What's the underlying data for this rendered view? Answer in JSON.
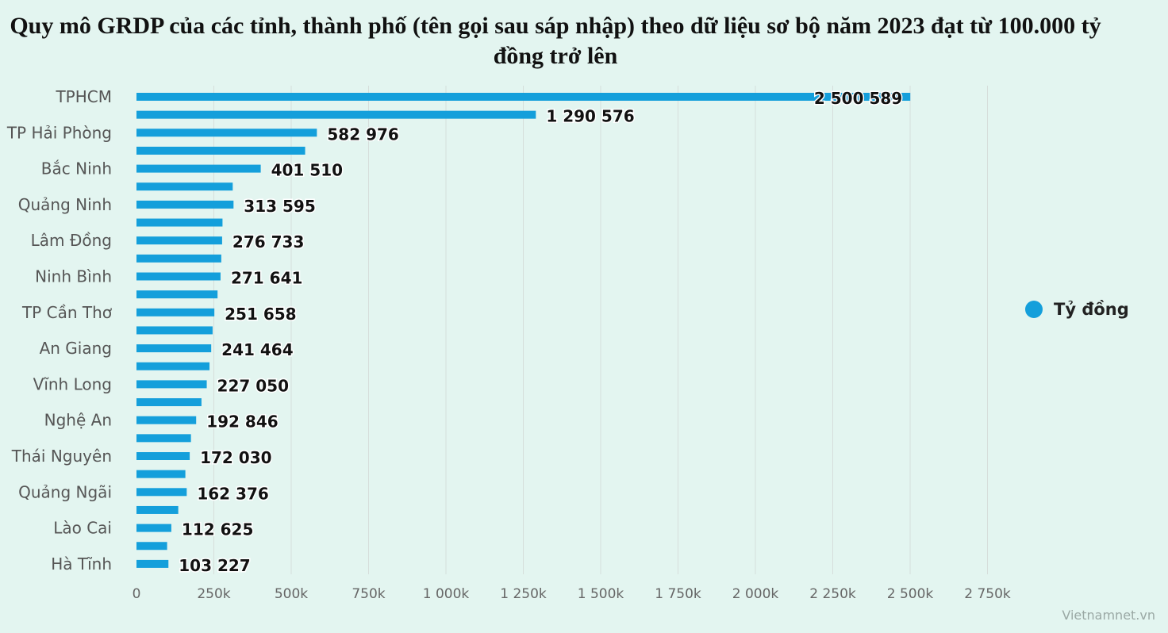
{
  "title": "Quy mô GRDP của các tỉnh, thành phố (tên gọi sau sáp nhập) theo dữ liệu sơ bộ năm 2023 đạt từ 100.000 tỷ đồng trở lên",
  "source": "Vietnamnet.vn",
  "colors": {
    "bar": "#149fdb",
    "background": "#e3f5f0",
    "grid": "#d6dedb"
  },
  "chart_data": {
    "type": "bar",
    "orientation": "horizontal",
    "unit": "Tỷ đồng",
    "legend": {
      "position": "right",
      "entries": [
        "Tỷ đồng"
      ]
    },
    "xlim": [
      0,
      2750000
    ],
    "xticks": [
      0,
      250000,
      500000,
      750000,
      1000000,
      1250000,
      1500000,
      1750000,
      2000000,
      2250000,
      2500000,
      2750000
    ],
    "xtick_labels": [
      "0",
      "250k",
      "500k",
      "750k",
      "1 000k",
      "1 250k",
      "1 500k",
      "1 750k",
      "2 000k",
      "2 250k",
      "2 500k",
      "2 750k"
    ],
    "grid": true,
    "series": [
      {
        "name": "Tỷ đồng",
        "values": [
          2500589,
          1290576,
          582976,
          545000,
          401510,
          311000,
          313595,
          278000,
          276733,
          274000,
          271641,
          262000,
          251658,
          246000,
          241464,
          236000,
          227050,
          210000,
          192846,
          176000,
          172030,
          158000,
          162376,
          135000,
          112625,
          99000,
          103227
        ]
      }
    ],
    "categories": [
      "TPHCM",
      "",
      "TP Hải Phòng",
      "",
      "Bắc Ninh",
      "",
      "Quảng Ninh",
      "",
      "Lâm Đồng",
      "",
      "Ninh Bình",
      "",
      "TP Cần Thơ",
      "",
      "An Giang",
      "",
      "Vĩnh Long",
      "",
      "Nghệ An",
      "",
      "Thái Nguyên",
      "",
      "Quảng Ngãi",
      "",
      "Lào Cai",
      "",
      "Hà Tĩnh"
    ],
    "data_labels": [
      "2 500 589",
      "1 290 576",
      "582 976",
      "",
      "401 510",
      "",
      "313 595",
      "",
      "276 733",
      "",
      "271 641",
      "",
      "251 658",
      "",
      "241 464",
      "",
      "227 050",
      "",
      "192 846",
      "",
      "172 030",
      "",
      "162 376",
      "",
      "112 625",
      "",
      "103 227"
    ]
  }
}
